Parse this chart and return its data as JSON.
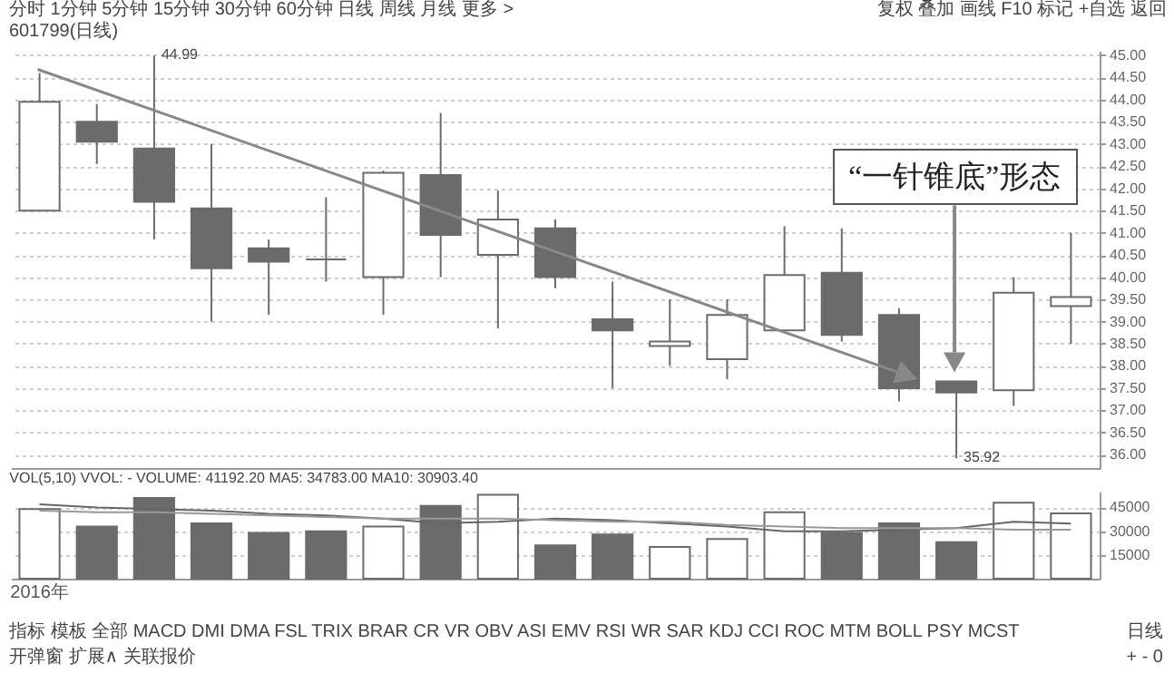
{
  "chart_data": [
    {
      "type": "candlestick",
      "title": "601799(日线)",
      "categories": [
        null,
        null,
        null,
        null,
        null,
        null,
        null,
        null,
        null,
        null,
        null,
        null,
        null,
        null,
        null,
        null,
        null,
        null,
        null
      ],
      "ohlc": [
        [
          41.5,
          44.6,
          41.5,
          43.95
        ],
        [
          43.5,
          43.9,
          42.55,
          43.05
        ],
        [
          42.9,
          44.99,
          40.85,
          41.7
        ],
        [
          41.55,
          43.0,
          39.0,
          40.2
        ],
        [
          40.65,
          40.85,
          39.15,
          40.35
        ],
        [
          40.4,
          41.8,
          39.9,
          40.4
        ],
        [
          40.0,
          42.4,
          39.15,
          42.35
        ],
        [
          42.3,
          43.7,
          40.0,
          40.95
        ],
        [
          40.5,
          41.95,
          38.85,
          41.3
        ],
        [
          41.1,
          41.3,
          39.75,
          40.0
        ],
        [
          39.05,
          39.9,
          37.5,
          38.8
        ],
        [
          38.45,
          39.5,
          38.0,
          38.55
        ],
        [
          38.15,
          39.5,
          37.7,
          39.15
        ],
        [
          38.8,
          41.15,
          38.8,
          40.05
        ],
        [
          40.1,
          41.1,
          38.55,
          38.7
        ],
        [
          39.15,
          39.3,
          37.2,
          37.5
        ],
        [
          37.65,
          37.65,
          35.92,
          37.4
        ],
        [
          37.45,
          40.0,
          37.1,
          39.65
        ],
        [
          39.35,
          41.0,
          38.5,
          39.55
        ]
      ],
      "colors": [
        "#ffffff",
        "#6b6b6b",
        "#6b6b6b",
        "#6b6b6b",
        "#6b6b6b",
        "#6b6b6b",
        "#ffffff",
        "#6b6b6b",
        "#ffffff",
        "#6b6b6b",
        "#6b6b6b",
        "#ffffff",
        "#ffffff",
        "#ffffff",
        "#6b6b6b",
        "#6b6b6b",
        "#6b6b6b",
        "#ffffff",
        "#ffffff"
      ],
      "ylim": [
        35.7,
        45.1
      ],
      "yticks": [
        {
          "value": 36,
          "label": "36.00"
        },
        {
          "value": 36.5,
          "label": "36.50"
        },
        {
          "value": 37,
          "label": "37.00"
        },
        {
          "value": 37.5,
          "label": "37.50"
        },
        {
          "value": 38,
          "label": "38.00"
        },
        {
          "value": 38.5,
          "label": "38.50"
        },
        {
          "value": 39,
          "label": "39.00"
        },
        {
          "value": 39.5,
          "label": "39.50"
        },
        {
          "value": 40,
          "label": "40.00"
        },
        {
          "value": 40.5,
          "label": "40.50"
        },
        {
          "value": 41,
          "label": "41.00"
        },
        {
          "value": 41.5,
          "label": "41.50"
        },
        {
          "value": 42,
          "label": "42.00"
        },
        {
          "value": 42.5,
          "label": "42.50"
        },
        {
          "value": 43,
          "label": "43.00"
        },
        {
          "value": 43.5,
          "label": "43.50"
        },
        {
          "value": 44,
          "label": "44.00"
        },
        {
          "value": 44.5,
          "label": "44.50"
        },
        {
          "value": 45,
          "label": "45.00"
        }
      ],
      "grid": "y",
      "tick_labels": "y",
      "annotations": [
        "分时 1分钟 5分钟 15分钟 30分钟 60分钟 日线 周线 月线 更多 >",
        "复权 叠加 画线 F10 标记 +自选 返回",
        "44.99",
        "35.92",
        "“一针锥底”形态"
      ]
    },
    {
      "type": "bar",
      "title": "VOL(5,10) VVOL: - VOLUME: 41192.20 MA5: 34783.00 MA10: 30903.40",
      "categories": [
        "2016年",
        null,
        null,
        null,
        null,
        null,
        null,
        null,
        null,
        null,
        null,
        null,
        null,
        null,
        null,
        null,
        null,
        null,
        null
      ],
      "series": [
        {
          "type": "bar",
          "values": [
            44000,
            33000,
            51000,
            35000,
            29000,
            30000,
            33000,
            46000,
            53000,
            21000,
            28000,
            20000,
            25000,
            42000,
            29000,
            35000,
            23000,
            48000,
            41192.2
          ],
          "colors": [
            "#ffffff",
            "#6b6b6b",
            "#6b6b6b",
            "#6b6b6b",
            "#6b6b6b",
            "#6b6b6b",
            "#ffffff",
            "#6b6b6b",
            "#ffffff",
            "#6b6b6b",
            "#6b6b6b",
            "#ffffff",
            "#ffffff",
            "#ffffff",
            "#6b6b6b",
            "#6b6b6b",
            "#6b6b6b",
            "#ffffff",
            "#ffffff"
          ]
        },
        {
          "type": "line",
          "color": "#666666",
          "values": [
            47000,
            45000,
            44000,
            43000,
            41000,
            40000,
            38000,
            35000,
            36000,
            38000,
            37000,
            35000,
            33000,
            30000,
            30000,
            31000,
            32000,
            36000,
            34783
          ]
        },
        {
          "type": "line",
          "color": "#999999",
          "values": [
            43000,
            42000,
            42000,
            41000,
            40000,
            39000,
            38000,
            38000,
            38000,
            37000,
            36000,
            36000,
            34000,
            33000,
            32000,
            32000,
            32000,
            31000,
            30903
          ]
        }
      ],
      "ylim": [
        0,
        55000
      ],
      "yticks": [
        15000,
        30000,
        45000
      ],
      "grid": "y",
      "annotations": [
        "指标 模板 全部 MACD DMI DMA FSL TRIX BRAR CR VR OBV ASI EMV RSI WR SAR KDJ CCI ROC MTM BOLL PSY MCST",
        "开弹窗 扩展∧ 关联报价",
        "日线",
        "+ - 0"
      ]
    }
  ]
}
